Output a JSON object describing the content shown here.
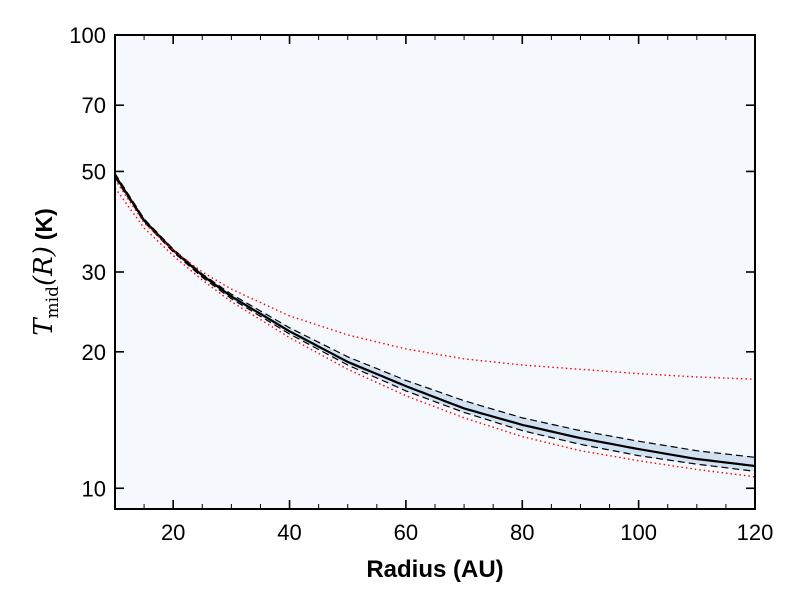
{
  "chart_data": {
    "type": "line",
    "title": "",
    "xlabel": "Radius (AU)",
    "ylabel": {
      "math_symbol": "T",
      "math_subscript": "mid",
      "math_argument": "(R)",
      "unit": "(K)"
    },
    "xlim": [
      10,
      120
    ],
    "ylim": [
      9,
      100
    ],
    "yscale": "log",
    "grid": false,
    "background_color": "#f5f8fd",
    "uncertainty_band_color": "#a9c6e4",
    "x_ticks": [
      {
        "value": 20,
        "label": "20"
      },
      {
        "value": 40,
        "label": "40"
      },
      {
        "value": 60,
        "label": "60"
      },
      {
        "value": 80,
        "label": "80"
      },
      {
        "value": 100,
        "label": "100"
      },
      {
        "value": 120,
        "label": "120"
      }
    ],
    "y_ticks": [
      {
        "value": 10,
        "label": "10"
      },
      {
        "value": 20,
        "label": "20"
      },
      {
        "value": 30,
        "label": "30"
      },
      {
        "value": 50,
        "label": "50"
      },
      {
        "value": 70,
        "label": "70"
      },
      {
        "value": 100,
        "label": "100"
      }
    ],
    "series": [
      {
        "style": "solid",
        "color": "#000000",
        "x": [
          10,
          15,
          20,
          25,
          30,
          40,
          50,
          60,
          70,
          80,
          90,
          100,
          110,
          120
        ],
        "y": [
          49,
          39,
          33.5,
          29.5,
          26.5,
          22.2,
          19.0,
          16.8,
          15.0,
          13.8,
          12.9,
          12.2,
          11.6,
          11.2
        ]
      },
      {
        "style": "dashed",
        "color": "#000000",
        "x": [
          10,
          15,
          20,
          25,
          30,
          40,
          50,
          60,
          70,
          80,
          90,
          100,
          110,
          120
        ],
        "y": [
          49.5,
          39.3,
          33.7,
          29.7,
          26.8,
          22.6,
          19.5,
          17.3,
          15.6,
          14.3,
          13.4,
          12.7,
          12.1,
          11.7
        ]
      },
      {
        "style": "dashed",
        "color": "#000000",
        "x": [
          10,
          15,
          20,
          25,
          30,
          40,
          50,
          60,
          70,
          80,
          90,
          100,
          110,
          120
        ],
        "y": [
          48.5,
          38.7,
          33.2,
          29.2,
          26.2,
          21.9,
          18.7,
          16.4,
          14.7,
          13.4,
          12.5,
          11.8,
          11.3,
          10.9
        ]
      },
      {
        "style": "dotted",
        "color": "#ff0000",
        "x": [
          10,
          15,
          20,
          25,
          30,
          40,
          50,
          60,
          70,
          80,
          90,
          100,
          110,
          120
        ],
        "y": [
          48,
          38.5,
          33.5,
          30.0,
          27.5,
          24.0,
          21.8,
          20.3,
          19.3,
          18.7,
          18.3,
          17.9,
          17.6,
          17.4
        ]
      },
      {
        "style": "dotted",
        "color": "#ff0000",
        "x": [
          10,
          15,
          20,
          25,
          30,
          40,
          50,
          60,
          70,
          80,
          90,
          100,
          110,
          120
        ],
        "y": [
          46,
          37.5,
          32.6,
          28.8,
          25.8,
          21.5,
          18.3,
          16.0,
          14.3,
          13.0,
          12.1,
          11.5,
          11.0,
          10.6
        ]
      }
    ]
  }
}
